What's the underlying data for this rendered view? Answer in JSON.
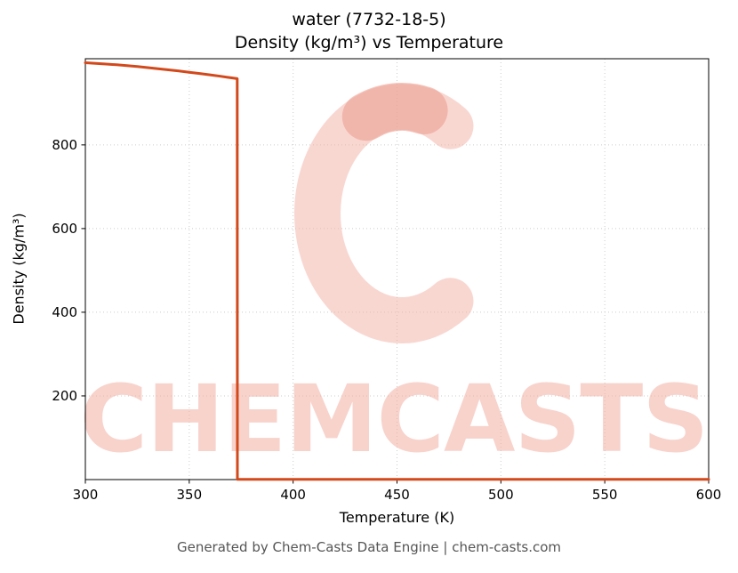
{
  "chart_data": {
    "type": "line",
    "title": "water (7732-18-5)",
    "subtitle": "Density (kg/m³) vs Temperature",
    "xlabel": "Temperature (K)",
    "ylabel": "Density (kg/m³)",
    "xlim": [
      300,
      600
    ],
    "ylim": [
      0,
      1006
    ],
    "x_ticks": [
      300,
      350,
      400,
      450,
      500,
      550,
      600
    ],
    "y_ticks": [
      200,
      400,
      600,
      800
    ],
    "grid": true,
    "legend_position": "none",
    "line_color": "#d2491c",
    "grid_color": "#cccccc",
    "axis_color": "#000000",
    "background_color": "#ffffff",
    "series": [
      {
        "name": "Density (kg/m³)",
        "points": [
          [
            300,
            996.5
          ],
          [
            305,
            995.0
          ],
          [
            310,
            993.3
          ],
          [
            315,
            991.5
          ],
          [
            320,
            989.4
          ],
          [
            325,
            987.2
          ],
          [
            330,
            984.7
          ],
          [
            335,
            982.2
          ],
          [
            340,
            979.5
          ],
          [
            345,
            976.6
          ],
          [
            350,
            973.7
          ],
          [
            355,
            970.6
          ],
          [
            360,
            967.4
          ],
          [
            365,
            964.0
          ],
          [
            370,
            960.5
          ],
          [
            373.1,
            958.4
          ],
          [
            373.2,
            0.6
          ],
          [
            380,
            0.58
          ],
          [
            400,
            0.55
          ],
          [
            425,
            0.52
          ],
          [
            450,
            0.49
          ],
          [
            475,
            0.46
          ],
          [
            500,
            0.44
          ],
          [
            525,
            0.42
          ],
          [
            550,
            0.4
          ],
          [
            575,
            0.38
          ],
          [
            600,
            0.36
          ]
        ]
      }
    ]
  },
  "watermark": {
    "text": "CHEMCASTS",
    "color": "#f3b0a4",
    "accent_color": "#eb9b8c"
  },
  "footer": {
    "text": "Generated by Chem-Casts Data Engine | chem-casts.com"
  }
}
